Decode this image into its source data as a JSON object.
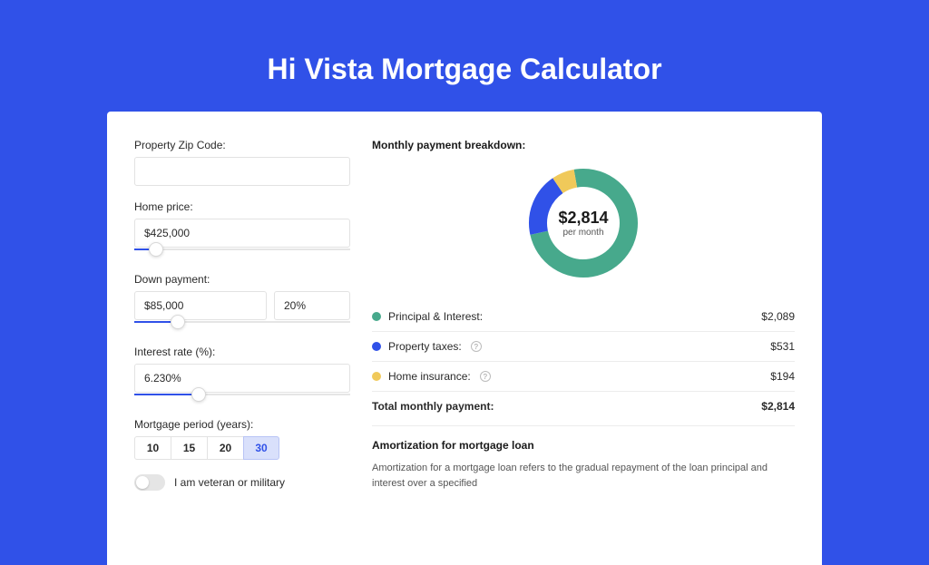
{
  "page": {
    "title": "Hi Vista Mortgage Calculator",
    "bg_color": "#3051e8",
    "title_color": "#ffffff",
    "title_fontsize": 32
  },
  "card": {
    "bg_color": "#ffffff"
  },
  "form": {
    "zip": {
      "label": "Property Zip Code:",
      "value": ""
    },
    "home_price": {
      "label": "Home price:",
      "value": "$425,000",
      "slider_fill_pct": 10
    },
    "down_payment": {
      "label": "Down payment:",
      "amount": "$85,000",
      "pct": "20%",
      "slider_fill_pct": 20
    },
    "interest_rate": {
      "label": "Interest rate (%):",
      "value": "6.230%",
      "slider_fill_pct": 30
    },
    "period": {
      "label": "Mortgage period (years):",
      "options": [
        "10",
        "15",
        "20",
        "30"
      ],
      "selected_index": 3
    },
    "veteran": {
      "label": "I am veteran or military",
      "checked": false
    }
  },
  "breakdown": {
    "title": "Monthly payment breakdown:",
    "donut": {
      "center_value": "$2,814",
      "center_sub": "per month",
      "segments": [
        {
          "label": "Principal & Interest",
          "value": 2089,
          "pct": 74.2,
          "color": "#47a98c"
        },
        {
          "label": "Property taxes",
          "value": 531,
          "pct": 18.9,
          "color": "#3051e8"
        },
        {
          "label": "Home insurance",
          "value": 194,
          "pct": 6.9,
          "color": "#f0c95a"
        }
      ],
      "stroke_width": 20,
      "total": 2814
    },
    "rows": [
      {
        "label": "Principal & Interest:",
        "value": "$2,089",
        "color": "#47a98c",
        "has_info": false
      },
      {
        "label": "Property taxes:",
        "value": "$531",
        "color": "#3051e8",
        "has_info": true
      },
      {
        "label": "Home insurance:",
        "value": "$194",
        "color": "#f0c95a",
        "has_info": true
      }
    ],
    "total_label": "Total monthly payment:",
    "total_value": "$2,814"
  },
  "amortization": {
    "title": "Amortization for mortgage loan",
    "text": "Amortization for a mortgage loan refers to the gradual repayment of the loan principal and interest over a specified"
  }
}
